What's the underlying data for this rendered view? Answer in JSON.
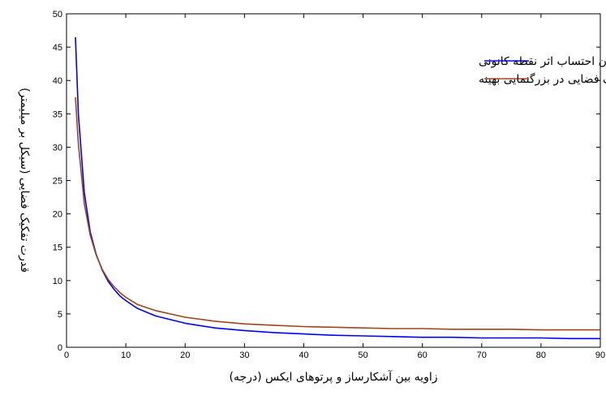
{
  "chart_data": {
    "type": "line",
    "xlabel": "زاویه بین آشکارساز و پرتوهای ایکس (درجه)",
    "ylabel": "قدرت تفکیک فضایی (سیکل بر میلیمتر)",
    "xlim": [
      0,
      90
    ],
    "ylim": [
      0,
      50
    ],
    "xticks": [
      0,
      10,
      20,
      30,
      40,
      50,
      60,
      70,
      80,
      90
    ],
    "yticks": [
      0,
      5,
      10,
      15,
      20,
      25,
      30,
      35,
      40,
      45,
      50
    ],
    "grid": false,
    "legend_position": "top-right",
    "series": [
      {
        "name": "قدرت تفکیک فضایی بدون احتساب اثر نقطه کانونی",
        "color": "#0000ff",
        "x": [
          1.5,
          2,
          3,
          4,
          5,
          6,
          7,
          8,
          9,
          10,
          12,
          15,
          20,
          25,
          30,
          35,
          40,
          45,
          50,
          55,
          60,
          65,
          70,
          75,
          80,
          85,
          90
        ],
        "y": [
          46.5,
          35.0,
          23.2,
          17.3,
          13.9,
          11.6,
          9.9,
          8.7,
          7.7,
          7.0,
          5.8,
          4.7,
          3.6,
          2.9,
          2.5,
          2.2,
          2.0,
          1.8,
          1.7,
          1.6,
          1.5,
          1.5,
          1.4,
          1.4,
          1.4,
          1.3,
          1.3
        ]
      },
      {
        "name": "قدرت تفکیک فضایی در بزرگنمایی بهینه",
        "color": "#a0441c",
        "x": [
          1.5,
          2,
          3,
          4,
          5,
          6,
          7,
          8,
          9,
          10,
          12,
          15,
          20,
          25,
          30,
          35,
          40,
          45,
          50,
          55,
          60,
          65,
          70,
          75,
          80,
          85,
          90
        ],
        "y": [
          37.5,
          30.5,
          21.5,
          16.8,
          13.8,
          11.7,
          10.2,
          9.1,
          8.2,
          7.5,
          6.4,
          5.5,
          4.5,
          3.9,
          3.5,
          3.3,
          3.1,
          3.0,
          2.9,
          2.8,
          2.8,
          2.7,
          2.7,
          2.7,
          2.6,
          2.6,
          2.6
        ]
      }
    ]
  }
}
